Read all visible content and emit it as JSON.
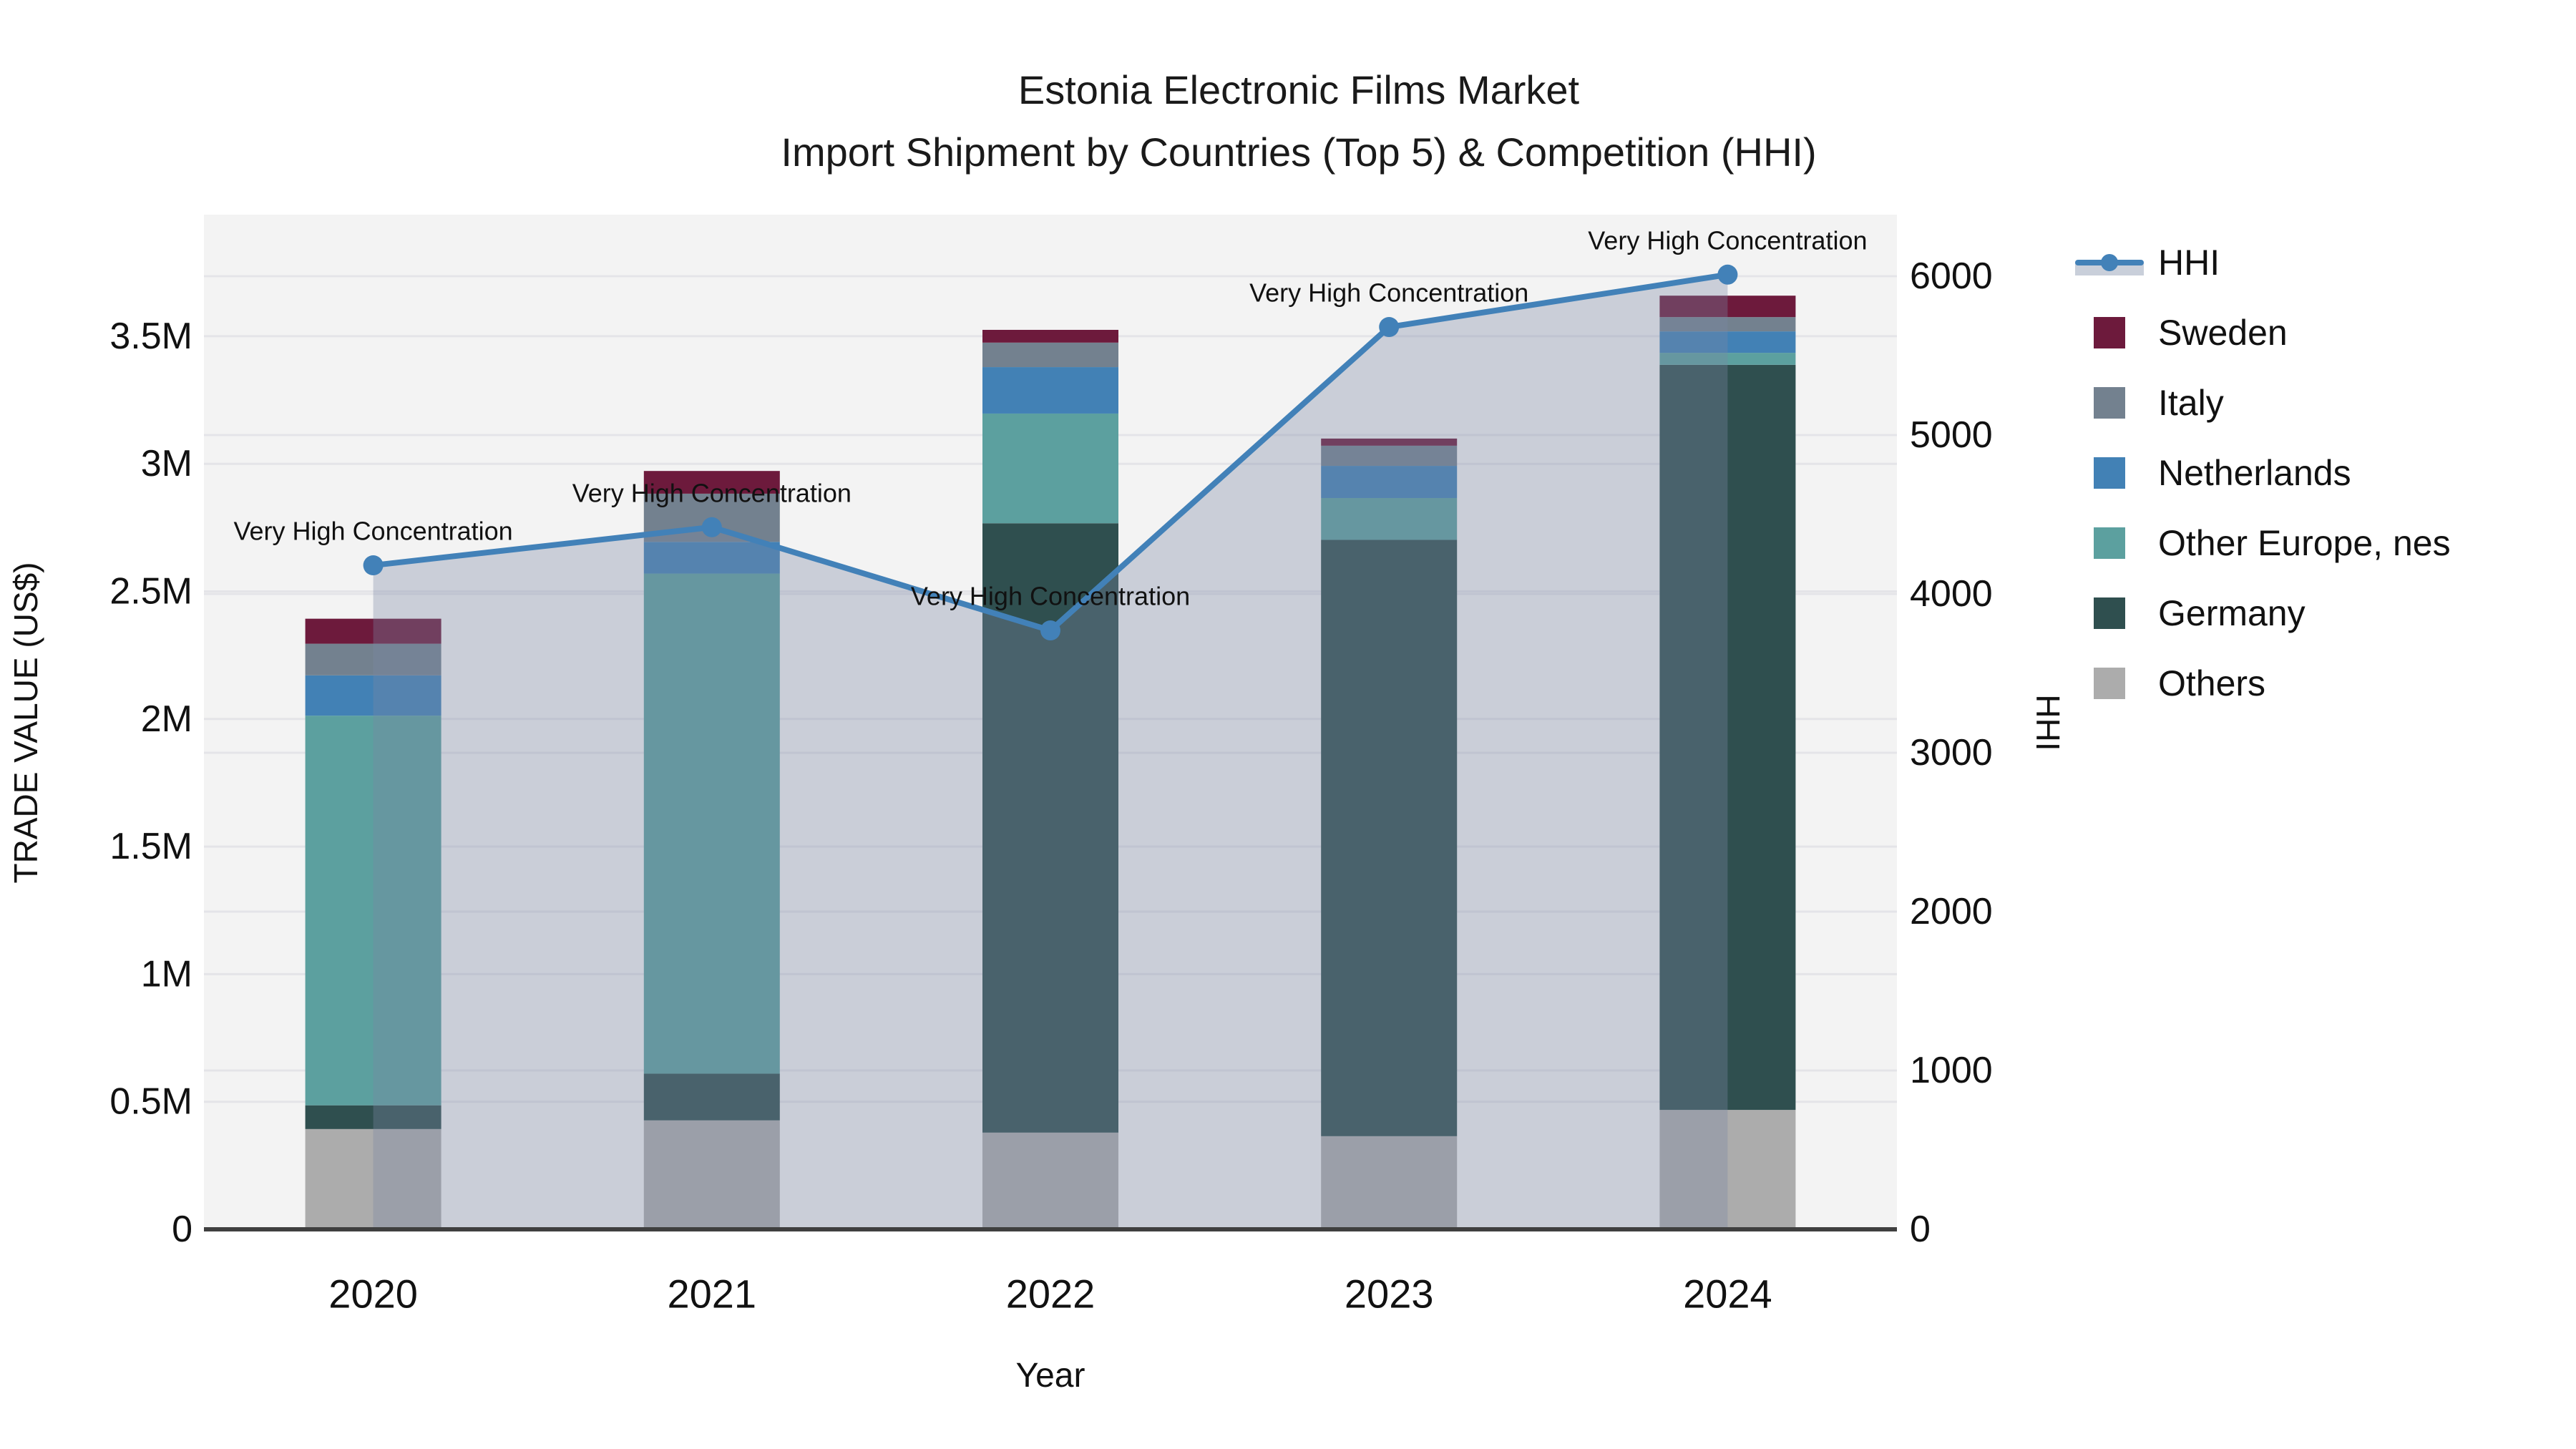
{
  "title": {
    "line1": "Estonia Electronic Films Market",
    "line2": "Import Shipment by Countries (Top 5) & Competition (HHI)"
  },
  "axes": {
    "left": {
      "title": "TRADE VALUE (US$)",
      "ticks": [
        "0",
        "0.5M",
        "1M",
        "1.5M",
        "2M",
        "2.5M",
        "3M",
        "3.5M"
      ]
    },
    "right": {
      "title": "HHI",
      "ticks": [
        "0",
        "1000",
        "2000",
        "3000",
        "4000",
        "5000",
        "6000"
      ]
    },
    "x": {
      "title": "Year",
      "ticks": [
        "2020",
        "2021",
        "2022",
        "2023",
        "2024"
      ]
    }
  },
  "annotation_text": "Very High Concentration",
  "legend": {
    "items": [
      {
        "label": "HHI",
        "type": "line",
        "color": "#4281b8"
      },
      {
        "label": "Sweden",
        "type": "square",
        "color": "#6d1a3c"
      },
      {
        "label": "Italy",
        "type": "square",
        "color": "#73818f"
      },
      {
        "label": "Netherlands",
        "type": "square",
        "color": "#4281b5"
      },
      {
        "label": "Other Europe, nes",
        "type": "square",
        "color": "#5ca09f"
      },
      {
        "label": "Germany",
        "type": "square",
        "color": "#2f4f4f"
      },
      {
        "label": "Others",
        "type": "square",
        "color": "#acacac"
      }
    ]
  },
  "colors": {
    "plot_bg": "#f3f3f3",
    "gridline": "#e4e4e8",
    "axis_line": "#3f3f3f",
    "hhi_line": "#4281b8",
    "area_fill_rgba": "rgba(122,134,164,0.34)",
    "text": "#111111"
  },
  "chart_data": {
    "type": "bar+line",
    "title": "Estonia Electronic Films Market — Import Shipment by Countries (Top 5) & Competition (HHI)",
    "xlabel": "Year",
    "ylabel_left": "TRADE VALUE (US$)",
    "ylabel_right": "HHI",
    "categories": [
      "2020",
      "2021",
      "2022",
      "2023",
      "2024"
    ],
    "unit": "millions of US$",
    "stack_order_note": "series listed bottom-to-top of the stacked bars",
    "series": [
      {
        "name": "Others",
        "color": "#acacac",
        "values": [
          0.393,
          0.427,
          0.379,
          0.365,
          0.468
        ]
      },
      {
        "name": "Germany",
        "color": "#2f4f4f",
        "values": [
          0.093,
          0.183,
          2.388,
          2.337,
          2.92
        ]
      },
      {
        "name": "Other Europe, nes",
        "color": "#5ca09f",
        "values": [
          1.527,
          1.96,
          0.43,
          0.164,
          0.047
        ]
      },
      {
        "name": "Netherlands",
        "color": "#4281b5",
        "values": [
          0.158,
          0.124,
          0.182,
          0.126,
          0.084
        ]
      },
      {
        "name": "Italy",
        "color": "#73818f",
        "values": [
          0.124,
          0.189,
          0.096,
          0.079,
          0.056
        ]
      },
      {
        "name": "Sweden",
        "color": "#6d1a3c",
        "values": [
          0.098,
          0.089,
          0.05,
          0.028,
          0.084
        ]
      }
    ],
    "bar_totals": [
      2.393,
      2.972,
      3.525,
      3.099,
      3.659
    ],
    "line_series": {
      "name": "HHI",
      "axis": "right",
      "values": [
        4180,
        4420,
        3770,
        5680,
        6010
      ],
      "point_annotations": [
        "Very High Concentration",
        "Very High Concentration",
        "Very High Concentration",
        "Very High Concentration",
        "Very High Concentration"
      ]
    },
    "ylim_left": [
      0,
      3.98
    ],
    "ylim_right": [
      0,
      6390
    ],
    "grid": true,
    "legend_position": "right"
  }
}
